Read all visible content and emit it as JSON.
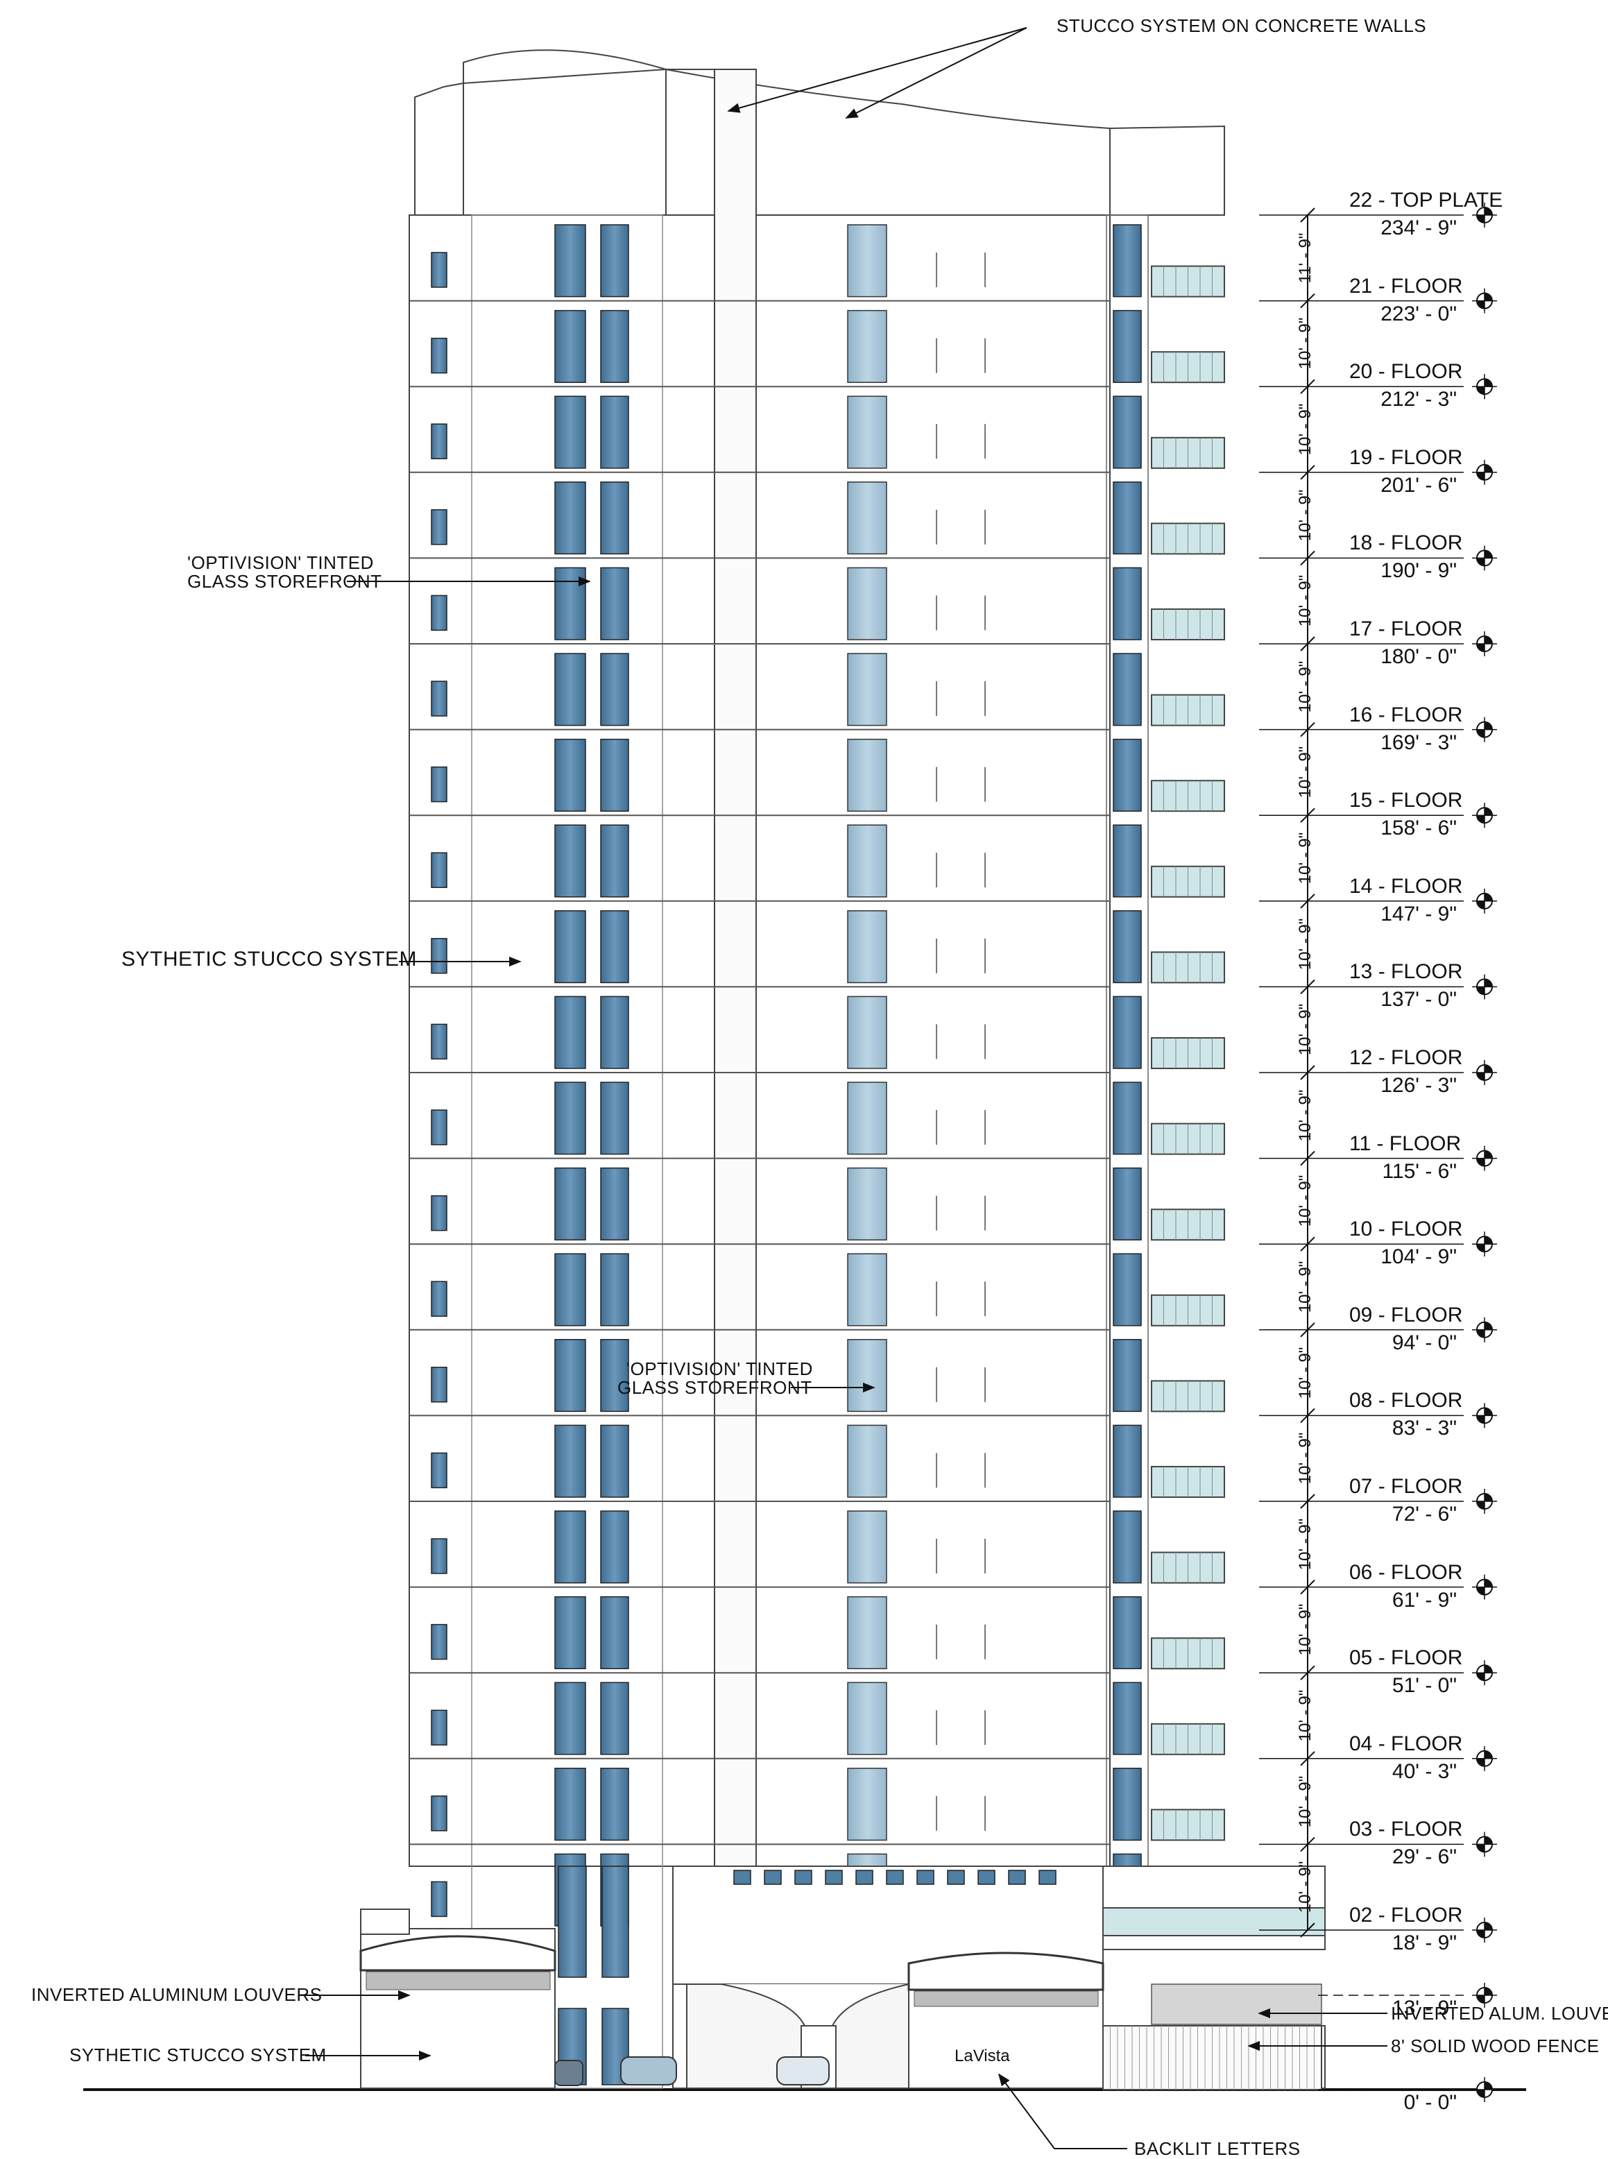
{
  "notes": {
    "stucco_concrete": "STUCCO SYSTEM ON CONCRETE WALLS",
    "optivision_upper": [
      "'OPTIVISION' TINTED",
      "GLASS STOREFRONT"
    ],
    "optivision_lower": [
      "'OPTIVISION' TINTED",
      "GLASS STOREFRONT"
    ],
    "sythetic_upper": "SYTHETIC STUCCO SYSTEM",
    "inverted_louvers_left": "INVERTED ALUMINUM LOUVERS",
    "sythetic_lower": "SYTHETIC STUCCO SYSTEM",
    "inverted_louvers_right": "INVERTED ALUM. LOUVERS",
    "wood_fence": "8' SOLID WOOD FENCE",
    "backlit_letters": "BACKLIT LETTERS"
  },
  "sign_text": "LaVista",
  "levels": [
    {
      "name": "22 - TOP PLATE",
      "elev": "234' - 9\""
    },
    {
      "name": "21 - FLOOR",
      "elev": "223' - 0\""
    },
    {
      "name": "20 - FLOOR",
      "elev": "212' - 3\""
    },
    {
      "name": "19 - FLOOR",
      "elev": "201' - 6\""
    },
    {
      "name": "18 - FLOOR",
      "elev": "190' - 9\""
    },
    {
      "name": "17 - FLOOR",
      "elev": "180' - 0\""
    },
    {
      "name": "16 - FLOOR",
      "elev": "169' - 3\""
    },
    {
      "name": "15 - FLOOR",
      "elev": "158' - 6\""
    },
    {
      "name": "14 - FLOOR",
      "elev": "147' - 9\""
    },
    {
      "name": "13 - FLOOR",
      "elev": "137' - 0\""
    },
    {
      "name": "12 - FLOOR",
      "elev": "126' - 3\""
    },
    {
      "name": "11 - FLOOR",
      "elev": "115' - 6\""
    },
    {
      "name": "10 - FLOOR",
      "elev": "104' - 9\""
    },
    {
      "name": "09 - FLOOR",
      "elev": "94' - 0\""
    },
    {
      "name": "08 - FLOOR",
      "elev": "83' - 3\""
    },
    {
      "name": "07 - FLOOR",
      "elev": "72' - 6\""
    },
    {
      "name": "06 - FLOOR",
      "elev": "61' - 9\""
    },
    {
      "name": "05 - FLOOR",
      "elev": "51' - 0\""
    },
    {
      "name": "04 - FLOOR",
      "elev": "40' - 3\""
    },
    {
      "name": "03 - FLOOR",
      "elev": "29' - 6\""
    },
    {
      "name": "02 - FLOOR",
      "elev": "18' - 9\""
    },
    {
      "name": "",
      "elev": "13' - 9\""
    },
    {
      "name": "",
      "elev": "0' - 0\""
    }
  ],
  "floor_dims": [
    "11' - 9\"",
    "10' - 9\"",
    "10' - 9\"",
    "10' - 9\"",
    "10' - 9\"",
    "10' - 9\"",
    "10' - 9\"",
    "10' - 9\"",
    "10' - 9\"",
    "10' - 9\"",
    "10' - 9\"",
    "10' - 9\"",
    "10' - 9\"",
    "10' - 9\"",
    "10' - 9\"",
    "10' - 9\"",
    "10' - 9\"",
    "10' - 9\"",
    "10' - 9\"",
    "10' - 9\""
  ],
  "colors": {
    "glass_dark": "#4f7fa3",
    "glass_light": "#a9c7d9",
    "balcony_glass": "#cfe6e8",
    "line": "#333333"
  }
}
